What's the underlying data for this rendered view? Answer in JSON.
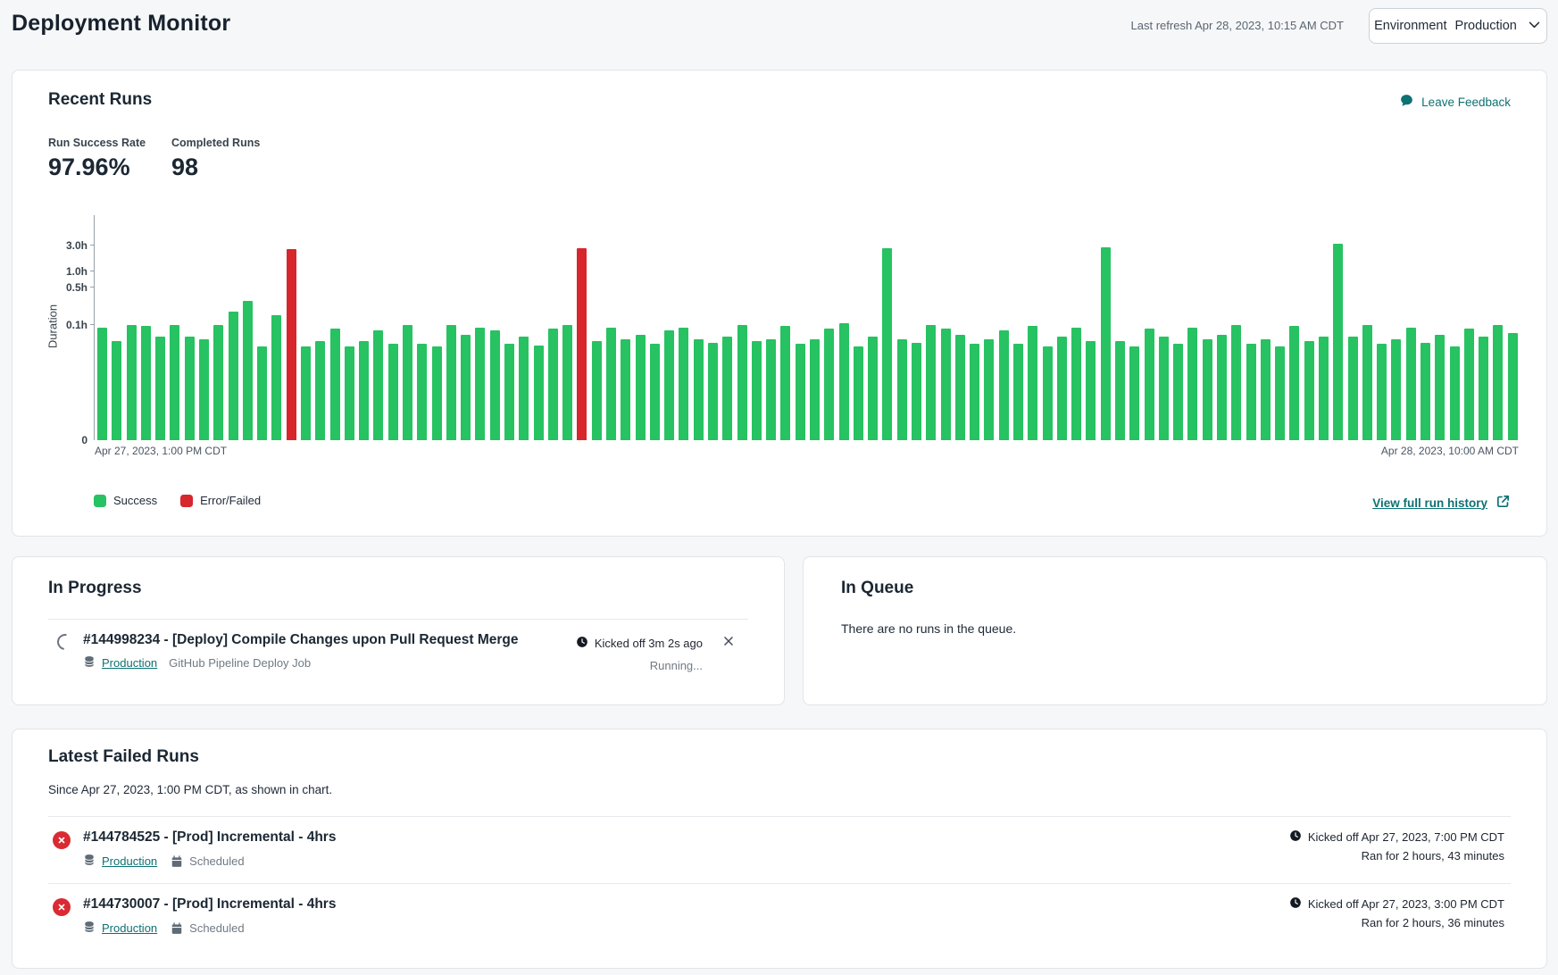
{
  "header": {
    "title": "Deployment Monitor",
    "last_refresh": "Last refresh Apr 28, 2023, 10:15 AM CDT",
    "environment_label": "Environment",
    "environment_value": "Production"
  },
  "recent_runs": {
    "title": "Recent Runs",
    "leave_feedback": "Leave Feedback",
    "stats": [
      {
        "label": "Run Success Rate",
        "value": "97.96%"
      },
      {
        "label": "Completed Runs",
        "value": "98"
      }
    ],
    "legend": [
      {
        "label": "Success",
        "color": "#27c262"
      },
      {
        "label": "Error/Failed",
        "color": "#d7262c"
      }
    ],
    "view_history": "View full run history"
  },
  "chart_data": {
    "type": "bar",
    "ylabel": "Duration",
    "y_scale": "log",
    "unit": "hours",
    "x_axis_start_label": "Apr 27, 2023, 1:00 PM CDT",
    "x_axis_end_label": "Apr 28, 2023, 10:00 AM CDT",
    "y_ticks": [
      {
        "label": "3.0h",
        "hours": 3.0
      },
      {
        "label": "1.0h",
        "hours": 1.0
      },
      {
        "label": "0.5h",
        "hours": 0.5
      },
      {
        "label": "0.1h",
        "hours": 0.1
      },
      {
        "label": "0",
        "hours": 0
      }
    ],
    "values_hours": [
      0.09,
      0.05,
      0.1,
      0.095,
      0.06,
      0.1,
      0.06,
      0.055,
      0.1,
      0.18,
      0.28,
      0.04,
      0.15,
      2.6,
      0.04,
      0.05,
      0.085,
      0.04,
      0.05,
      0.08,
      0.045,
      0.1,
      0.045,
      0.04,
      0.1,
      0.065,
      0.09,
      0.08,
      0.045,
      0.06,
      0.042,
      0.085,
      0.1,
      2.72,
      0.05,
      0.09,
      0.055,
      0.065,
      0.045,
      0.08,
      0.09,
      0.055,
      0.046,
      0.06,
      0.1,
      0.05,
      0.055,
      0.095,
      0.045,
      0.055,
      0.085,
      0.11,
      0.04,
      0.06,
      2.7,
      0.055,
      0.046,
      0.1,
      0.085,
      0.065,
      0.045,
      0.055,
      0.08,
      0.045,
      0.095,
      0.04,
      0.06,
      0.09,
      0.05,
      2.8,
      0.05,
      0.04,
      0.085,
      0.06,
      0.045,
      0.09,
      0.055,
      0.065,
      0.1,
      0.045,
      0.055,
      0.04,
      0.095,
      0.05,
      0.06,
      3.2,
      0.06,
      0.1,
      0.045,
      0.055,
      0.09,
      0.046,
      0.065,
      0.04,
      0.085,
      0.06,
      0.1,
      0.07
    ],
    "failed_indices": [
      13,
      33
    ],
    "colors": {
      "success": "#27c262",
      "failed": "#d7262c"
    }
  },
  "in_progress": {
    "title": "In Progress",
    "run": {
      "title": "#144998234 - [Deploy] Compile Changes upon Pull Request Merge",
      "environment": "Production",
      "job": "GitHub Pipeline Deploy Job",
      "kicked_off": "Kicked off 3m 2s ago",
      "status": "Running..."
    }
  },
  "in_queue": {
    "title": "In Queue",
    "empty_message": "There are no runs in the queue."
  },
  "latest_failed": {
    "title": "Latest Failed Runs",
    "subtitle": "Since Apr 27, 2023, 1:00 PM CDT, as shown in chart.",
    "runs": [
      {
        "title": "#144784525 - [Prod] Incremental - 4hrs",
        "environment": "Production",
        "trigger": "Scheduled",
        "kicked_off": "Kicked off Apr 27, 2023, 7:00 PM CDT",
        "duration": "Ran for 2 hours, 43 minutes"
      },
      {
        "title": "#144730007 - [Prod] Incremental - 4hrs",
        "environment": "Production",
        "trigger": "Scheduled",
        "kicked_off": "Kicked off Apr 27, 2023, 3:00 PM CDT",
        "duration": "Ran for 2 hours, 36 minutes"
      }
    ]
  }
}
